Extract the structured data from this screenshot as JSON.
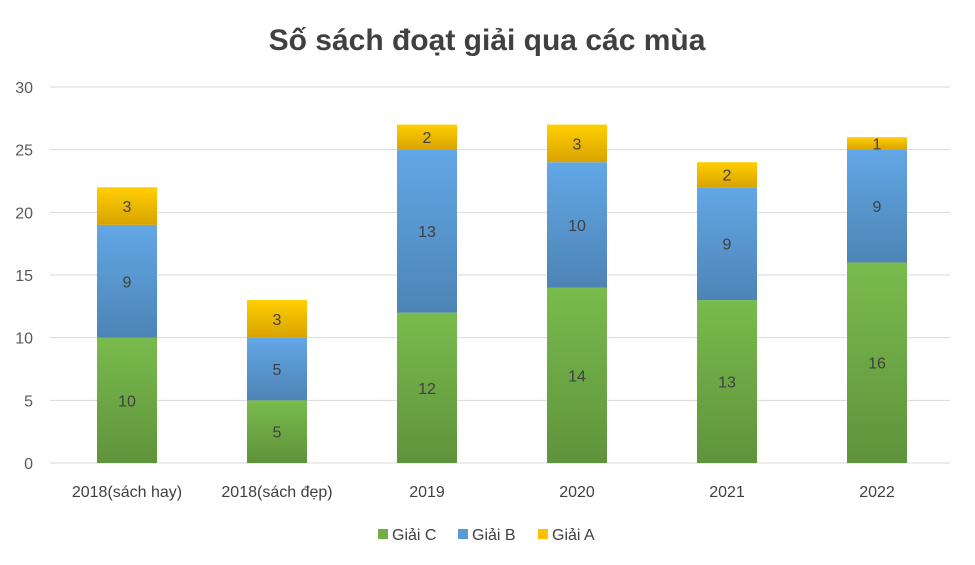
{
  "chart_data": {
    "type": "bar",
    "stacked": true,
    "title": "Số sách đoạt giải qua các mùa",
    "xlabel": "",
    "ylabel": "",
    "categories": [
      "2018(sách hay)",
      "2018(sách đẹp)",
      "2019",
      "2020",
      "2021",
      "2022"
    ],
    "series": [
      {
        "name": "Giải C",
        "values": [
          10,
          5,
          12,
          14,
          13,
          16
        ],
        "color": "#70ad47"
      },
      {
        "name": "Giải B",
        "values": [
          9,
          5,
          13,
          10,
          9,
          9
        ],
        "color": "#5b9bd5"
      },
      {
        "name": "Giải A",
        "values": [
          3,
          3,
          2,
          3,
          2,
          1
        ],
        "color": "#ffc000"
      }
    ],
    "ylim": [
      0,
      30
    ],
    "yticks": [
      0,
      5,
      10,
      15,
      20,
      25,
      30
    ],
    "grid": true,
    "legend": "bottom",
    "data_labels": true
  }
}
